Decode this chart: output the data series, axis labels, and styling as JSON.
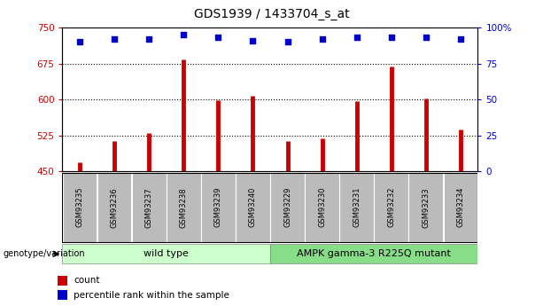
{
  "title": "GDS1939 / 1433704_s_at",
  "samples": [
    "GSM93235",
    "GSM93236",
    "GSM93237",
    "GSM93238",
    "GSM93239",
    "GSM93240",
    "GSM93229",
    "GSM93230",
    "GSM93231",
    "GSM93232",
    "GSM93233",
    "GSM93234"
  ],
  "counts": [
    468,
    513,
    530,
    683,
    598,
    607,
    513,
    519,
    597,
    668,
    602,
    538
  ],
  "percentiles": [
    90,
    92,
    92,
    95,
    93,
    91,
    90,
    92,
    93,
    93,
    93,
    92
  ],
  "ylim_left": [
    450,
    750
  ],
  "ylim_right": [
    0,
    100
  ],
  "yticks_left": [
    450,
    525,
    600,
    675,
    750
  ],
  "yticks_right": [
    0,
    25,
    50,
    75,
    100
  ],
  "bar_color": "#cc0000",
  "dot_color": "#0000cc",
  "group1_label": "wild type",
  "group2_label": "AMPK gamma-3 R225Q mutant",
  "group1_count": 6,
  "group2_count": 6,
  "group1_color": "#ccffcc",
  "group2_color": "#88dd88",
  "xticklabel_bg": "#bbbbbb",
  "genotype_label": "genotype/variation",
  "legend_count_label": "count",
  "legend_percentile_label": "percentile rank within the sample",
  "title_fontsize": 10,
  "tick_fontsize": 7.5,
  "label_fontsize": 7.5
}
